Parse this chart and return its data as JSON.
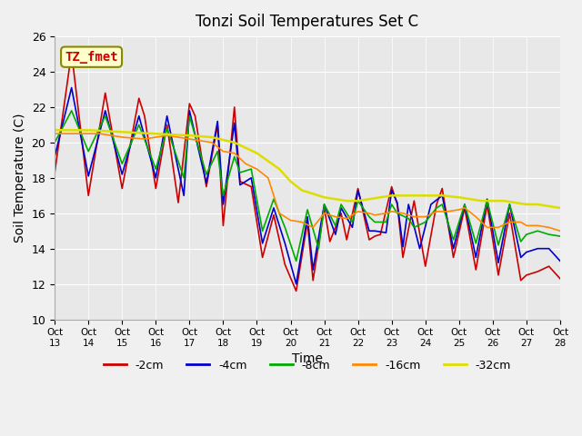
{
  "title": "Tonzi Soil Temperatures Set C",
  "xlabel": "Time",
  "ylabel": "Soil Temperature (C)",
  "ylim": [
    10,
    26
  ],
  "xlim": [
    0,
    450
  ],
  "background_color": "#e8e8e8",
  "plot_bg_color": "#e8e8e8",
  "series_colors": {
    "-2cm": "#cc0000",
    "-4cm": "#0000cc",
    "-8cm": "#00aa00",
    "-16cm": "#ff8800",
    "-32cm": "#dddd00"
  },
  "legend_label": "TZ_fmet",
  "legend_bg": "#ffffcc",
  "legend_border": "#888800",
  "tick_labels": [
    "Oct 13",
    "Oct 14",
    "Oct 15",
    "Oct 16",
    "Oct 17",
    "Oct 18",
    "Oct 19",
    "Oct 20",
    "Oct 21",
    "Oct 22",
    "Oct 23",
    "Oct 24",
    "Oct 25",
    "Oct 26",
    "Oct 27",
    "Oct 28"
  ],
  "tick_positions": [
    0,
    30,
    60,
    90,
    120,
    150,
    180,
    210,
    240,
    270,
    300,
    330,
    360,
    390,
    420,
    450
  ],
  "pts_2cm": [
    [
      0,
      18.3
    ],
    [
      15,
      25.1
    ],
    [
      30,
      17.0
    ],
    [
      45,
      22.8
    ],
    [
      60,
      17.4
    ],
    [
      75,
      22.5
    ],
    [
      80,
      21.5
    ],
    [
      90,
      17.4
    ],
    [
      100,
      21.0
    ],
    [
      110,
      16.6
    ],
    [
      120,
      22.2
    ],
    [
      125,
      21.5
    ],
    [
      135,
      17.5
    ],
    [
      145,
      21.0
    ],
    [
      150,
      15.3
    ],
    [
      160,
      22.0
    ],
    [
      165,
      17.8
    ],
    [
      175,
      17.5
    ],
    [
      185,
      13.5
    ],
    [
      195,
      15.9
    ],
    [
      205,
      13.1
    ],
    [
      215,
      11.6
    ],
    [
      225,
      15.5
    ],
    [
      230,
      12.2
    ],
    [
      240,
      16.3
    ],
    [
      245,
      14.4
    ],
    [
      255,
      16.0
    ],
    [
      260,
      14.5
    ],
    [
      270,
      17.4
    ],
    [
      280,
      14.5
    ],
    [
      285,
      14.7
    ],
    [
      290,
      14.8
    ],
    [
      300,
      17.5
    ],
    [
      305,
      16.5
    ],
    [
      310,
      13.5
    ],
    [
      320,
      16.7
    ],
    [
      330,
      13.0
    ],
    [
      340,
      16.5
    ],
    [
      345,
      17.4
    ],
    [
      355,
      13.5
    ],
    [
      365,
      16.3
    ],
    [
      375,
      12.8
    ],
    [
      385,
      16.5
    ],
    [
      395,
      12.5
    ],
    [
      405,
      16.0
    ],
    [
      415,
      12.2
    ],
    [
      420,
      12.5
    ],
    [
      430,
      12.7
    ],
    [
      440,
      13.0
    ],
    [
      450,
      12.3
    ]
  ],
  "pts_4cm": [
    [
      0,
      19.2
    ],
    [
      15,
      23.1
    ],
    [
      30,
      18.1
    ],
    [
      45,
      21.8
    ],
    [
      60,
      18.2
    ],
    [
      75,
      21.5
    ],
    [
      90,
      18.0
    ],
    [
      100,
      21.5
    ],
    [
      115,
      17.0
    ],
    [
      120,
      21.8
    ],
    [
      135,
      17.7
    ],
    [
      145,
      21.2
    ],
    [
      150,
      16.5
    ],
    [
      160,
      21.1
    ],
    [
      165,
      17.6
    ],
    [
      175,
      18.0
    ],
    [
      185,
      14.3
    ],
    [
      195,
      16.3
    ],
    [
      205,
      14.3
    ],
    [
      215,
      12.0
    ],
    [
      225,
      15.8
    ],
    [
      230,
      12.8
    ],
    [
      240,
      16.5
    ],
    [
      250,
      14.8
    ],
    [
      255,
      16.3
    ],
    [
      265,
      15.2
    ],
    [
      270,
      17.3
    ],
    [
      280,
      15.0
    ],
    [
      285,
      15.0
    ],
    [
      295,
      14.9
    ],
    [
      300,
      17.3
    ],
    [
      305,
      16.6
    ],
    [
      310,
      14.1
    ],
    [
      315,
      16.5
    ],
    [
      325,
      14.0
    ],
    [
      335,
      16.5
    ],
    [
      345,
      17.0
    ],
    [
      355,
      14.0
    ],
    [
      365,
      16.5
    ],
    [
      375,
      13.5
    ],
    [
      385,
      16.8
    ],
    [
      395,
      13.2
    ],
    [
      405,
      16.5
    ],
    [
      415,
      13.5
    ],
    [
      420,
      13.8
    ],
    [
      430,
      14.0
    ],
    [
      440,
      14.0
    ],
    [
      450,
      13.3
    ]
  ],
  "pts_8cm": [
    [
      0,
      20.0
    ],
    [
      15,
      21.8
    ],
    [
      30,
      19.5
    ],
    [
      45,
      21.5
    ],
    [
      60,
      18.8
    ],
    [
      75,
      21.0
    ],
    [
      90,
      18.5
    ],
    [
      100,
      20.8
    ],
    [
      115,
      18.0
    ],
    [
      120,
      21.5
    ],
    [
      135,
      18.2
    ],
    [
      145,
      19.5
    ],
    [
      150,
      17.0
    ],
    [
      160,
      19.2
    ],
    [
      165,
      18.3
    ],
    [
      175,
      18.5
    ],
    [
      185,
      15.0
    ],
    [
      195,
      16.8
    ],
    [
      205,
      15.2
    ],
    [
      215,
      13.3
    ],
    [
      225,
      16.2
    ],
    [
      235,
      14.0
    ],
    [
      240,
      16.5
    ],
    [
      250,
      15.3
    ],
    [
      255,
      16.5
    ],
    [
      265,
      15.5
    ],
    [
      270,
      16.7
    ],
    [
      280,
      15.8
    ],
    [
      285,
      15.5
    ],
    [
      295,
      15.5
    ],
    [
      300,
      16.5
    ],
    [
      305,
      16.0
    ],
    [
      315,
      15.7
    ],
    [
      320,
      15.2
    ],
    [
      330,
      15.5
    ],
    [
      340,
      16.3
    ],
    [
      345,
      16.5
    ],
    [
      355,
      14.5
    ],
    [
      365,
      16.5
    ],
    [
      375,
      14.3
    ],
    [
      385,
      16.7
    ],
    [
      395,
      14.2
    ],
    [
      405,
      16.5
    ],
    [
      415,
      14.4
    ],
    [
      420,
      14.8
    ],
    [
      430,
      15.0
    ],
    [
      440,
      14.8
    ],
    [
      450,
      14.7
    ]
  ],
  "pts_16cm": [
    [
      0,
      20.5
    ],
    [
      20,
      20.5
    ],
    [
      40,
      20.5
    ],
    [
      60,
      20.3
    ],
    [
      80,
      20.2
    ],
    [
      100,
      20.4
    ],
    [
      120,
      20.2
    ],
    [
      140,
      20.0
    ],
    [
      150,
      19.5
    ],
    [
      160,
      19.4
    ],
    [
      170,
      18.8
    ],
    [
      180,
      18.5
    ],
    [
      190,
      18.0
    ],
    [
      200,
      16.0
    ],
    [
      210,
      15.6
    ],
    [
      220,
      15.5
    ],
    [
      230,
      15.2
    ],
    [
      240,
      16.0
    ],
    [
      250,
      15.8
    ],
    [
      260,
      15.7
    ],
    [
      270,
      16.1
    ],
    [
      280,
      16.0
    ],
    [
      285,
      15.9
    ],
    [
      295,
      16.0
    ],
    [
      300,
      16.1
    ],
    [
      310,
      16.0
    ],
    [
      320,
      15.8
    ],
    [
      330,
      15.8
    ],
    [
      340,
      16.1
    ],
    [
      350,
      16.1
    ],
    [
      360,
      16.2
    ],
    [
      365,
      16.3
    ],
    [
      375,
      15.8
    ],
    [
      380,
      15.5
    ],
    [
      385,
      15.2
    ],
    [
      395,
      15.2
    ],
    [
      405,
      15.5
    ],
    [
      415,
      15.5
    ],
    [
      420,
      15.3
    ],
    [
      430,
      15.3
    ],
    [
      440,
      15.2
    ],
    [
      450,
      15.0
    ]
  ],
  "pts_32cm": [
    [
      0,
      20.7
    ],
    [
      30,
      20.7
    ],
    [
      60,
      20.6
    ],
    [
      90,
      20.5
    ],
    [
      120,
      20.4
    ],
    [
      140,
      20.3
    ],
    [
      160,
      20.0
    ],
    [
      180,
      19.4
    ],
    [
      200,
      18.5
    ],
    [
      210,
      17.8
    ],
    [
      220,
      17.3
    ],
    [
      230,
      17.1
    ],
    [
      240,
      16.9
    ],
    [
      250,
      16.8
    ],
    [
      260,
      16.7
    ],
    [
      270,
      16.7
    ],
    [
      280,
      16.8
    ],
    [
      290,
      16.9
    ],
    [
      300,
      17.0
    ],
    [
      310,
      17.0
    ],
    [
      320,
      17.0
    ],
    [
      330,
      17.0
    ],
    [
      340,
      17.0
    ],
    [
      345,
      17.0
    ],
    [
      360,
      16.9
    ],
    [
      370,
      16.8
    ],
    [
      380,
      16.7
    ],
    [
      390,
      16.7
    ],
    [
      400,
      16.7
    ],
    [
      410,
      16.6
    ],
    [
      420,
      16.5
    ],
    [
      430,
      16.5
    ],
    [
      440,
      16.4
    ],
    [
      450,
      16.3
    ]
  ]
}
